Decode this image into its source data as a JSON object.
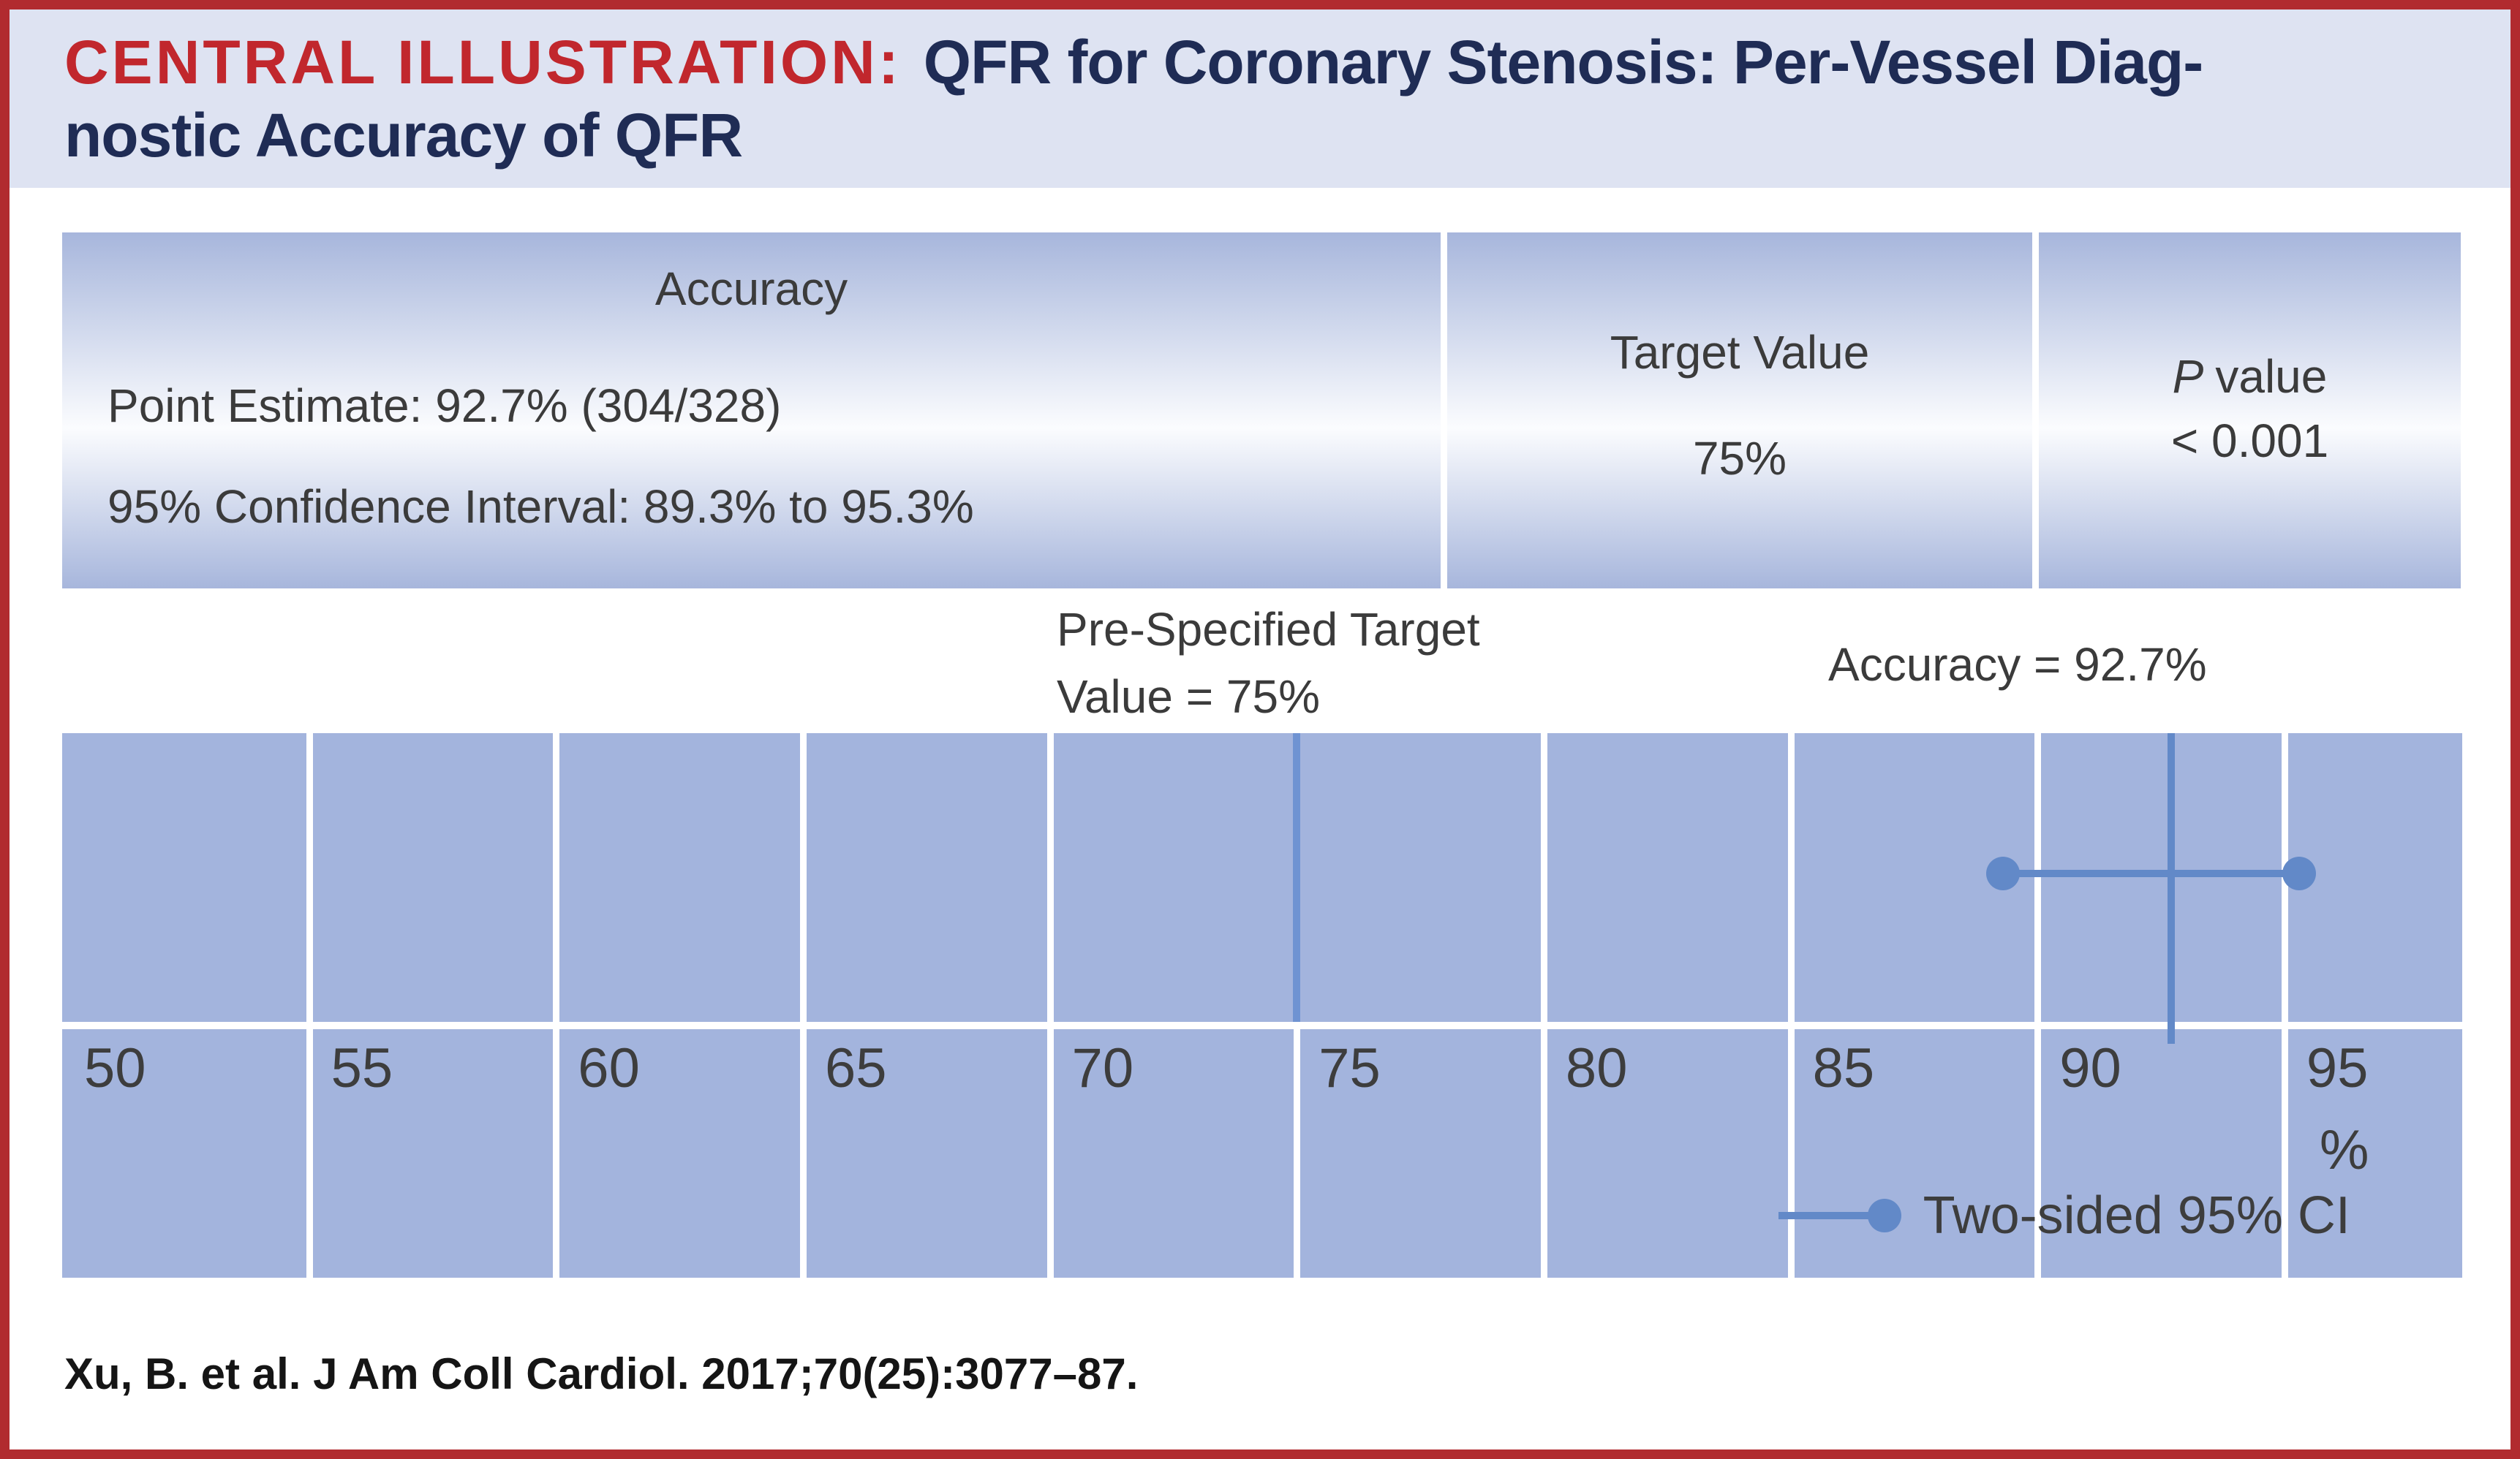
{
  "header": {
    "label": "CENTRAL ILLUSTRATION:",
    "title_line1_rest": "QFR for Coronary Stenosis: Per-Vessel Diag-",
    "title_line2": "nostic Accuracy of QFR"
  },
  "summary_table": {
    "accuracy_header": "Accuracy",
    "point_estimate_row": "Point Estimate: 92.7% (304/328)",
    "confidence_interval_row": "95% Confidence Interval: 89.3% to 95.3%",
    "target_header": "Target Value",
    "target_value": "75%",
    "p_header_italic": "P",
    "p_header_rest": "value",
    "p_value": "< 0.001"
  },
  "annotations": {
    "target_line1": "Pre-Specified Target",
    "target_line2": "Value = 75%",
    "accuracy": "Accuracy = 92.7%"
  },
  "chart_data": {
    "type": "scatter",
    "x_ticks": [
      50,
      55,
      60,
      65,
      70,
      75,
      80,
      85,
      90,
      95
    ],
    "x_unit": "%",
    "xlim": [
      50,
      98.6
    ],
    "point_estimate": 92.7,
    "ci_lower": 89.3,
    "ci_upper": 95.3,
    "ci_level": "95%",
    "target_value": 75,
    "numerator": 304,
    "denominator": 328,
    "p_value": "< 0.001",
    "legend": "Two-sided 95% CI",
    "grid": true,
    "legend_position": "bottom-right"
  },
  "legend": {
    "label": "Two-sided 95% CI"
  },
  "footer": {
    "citation": "Xu, B. et al. J Am Coll Cardiol. 2017;70(25):3077–87."
  },
  "colors": {
    "border_red": "#b12b2f",
    "title_red": "#c1272d",
    "title_navy": "#1f2c55",
    "header_band_bg": "#dee3f2",
    "table_gradient_blue": "#a7b6dc",
    "chart_band_blue": "#a3b4dd",
    "gridline_white": "#ffffff",
    "target_line_blue": "#6f93d2",
    "marker_blue": "#6289c8",
    "text_gray": "#3b3b3b"
  }
}
